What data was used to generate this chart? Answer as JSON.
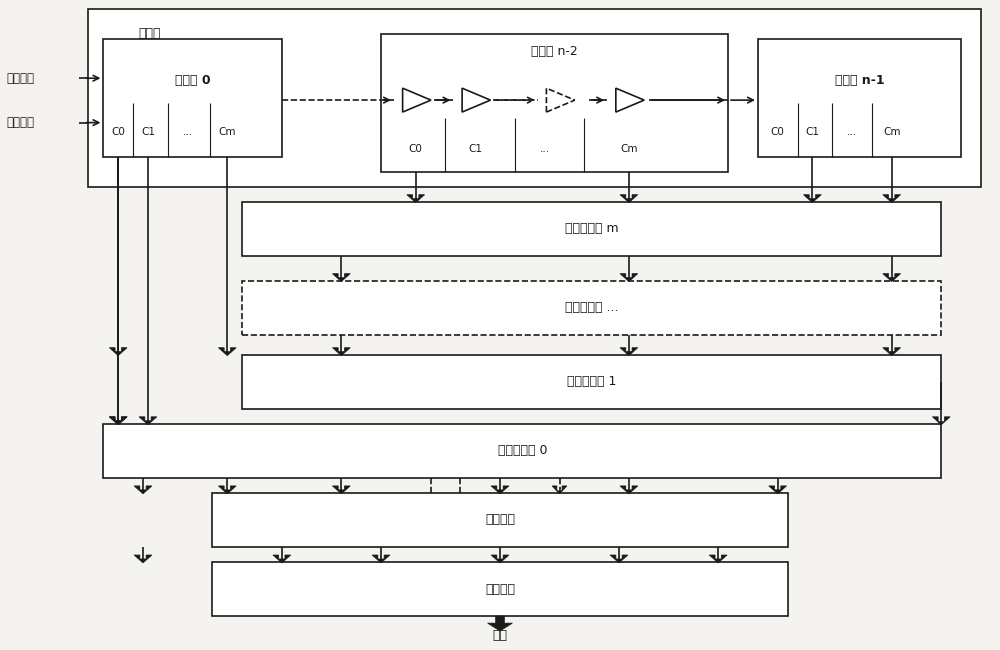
{
  "bg_color": "#f5f3f0",
  "box_color": "#ffffff",
  "line_color": "#1a1a1a",
  "label_delay_line": "延时线",
  "label_carry_chain_0": "进位链 0",
  "label_carry_chain_n2": "进位链 n-2",
  "label_carry_chain_n1": "进位链 n-1",
  "label_sub_delay_m": "次级延时线 m",
  "label_sub_delay_dots": "次级延时线 ...",
  "label_sub_delay_1": "次级延时线 1",
  "label_sub_delay_0": "次级延时线 0",
  "label_decode": "译码模块",
  "label_average": "平均模块",
  "label_output": "精码",
  "label_signal": "待测信号",
  "label_clock": "参考时钟",
  "label_C0": "C0",
  "label_C1": "C1",
  "label_Cdots": "...",
  "label_Cm": "Cm",
  "figsize": [
    10.0,
    6.5
  ],
  "dpi": 100
}
